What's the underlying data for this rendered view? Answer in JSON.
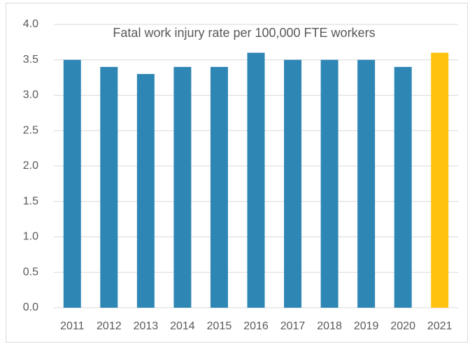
{
  "chart_data": {
    "type": "bar",
    "title": "Fatal work injury rate per 100,000 FTE workers",
    "categories": [
      "2011",
      "2012",
      "2013",
      "2014",
      "2015",
      "2016",
      "2017",
      "2018",
      "2019",
      "2020",
      "2021"
    ],
    "values": [
      3.5,
      3.4,
      3.3,
      3.4,
      3.4,
      3.6,
      3.5,
      3.5,
      3.5,
      3.4,
      3.6
    ],
    "colors": [
      "#2e86b5",
      "#2e86b5",
      "#2e86b5",
      "#2e86b5",
      "#2e86b5",
      "#2e86b5",
      "#2e86b5",
      "#2e86b5",
      "#2e86b5",
      "#2e86b5",
      "#ffc20e"
    ],
    "ylim": [
      0,
      4
    ],
    "yticks": [
      {
        "value": 0,
        "label": "0.0"
      },
      0.5,
      {
        "value": 1,
        "label": "1.0"
      },
      1.5,
      {
        "value": 2,
        "label": "2.0"
      },
      2.5,
      {
        "value": 3,
        "label": "3.0"
      },
      3.5,
      {
        "value": 4,
        "label": "4.0"
      }
    ],
    "grid": true
  }
}
